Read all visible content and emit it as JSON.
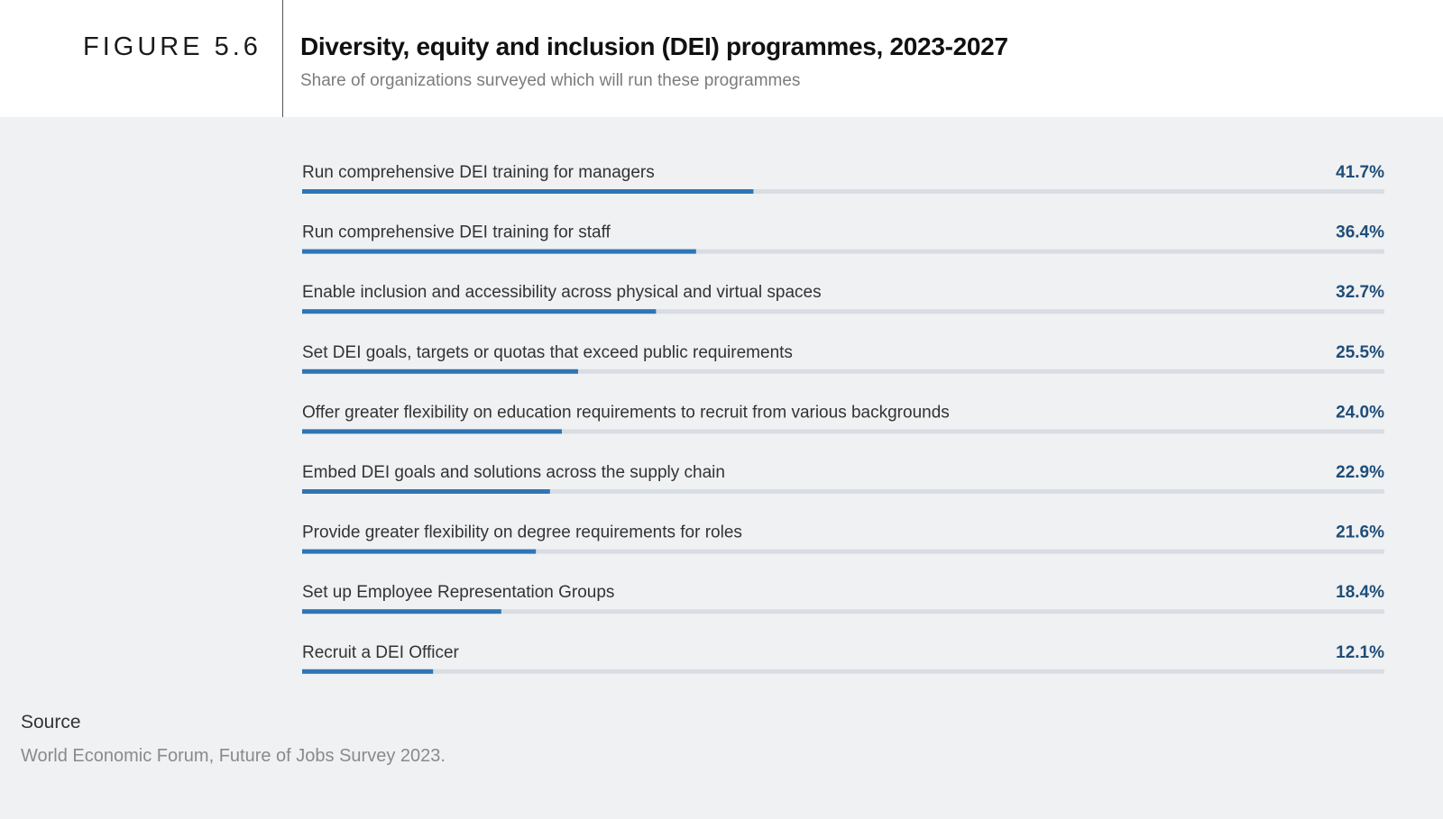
{
  "figure_label": "FIGURE 5.6",
  "source_label": "Source",
  "source_text": "World Economic Forum, Future of Jobs Survey 2023.",
  "colors": {
    "bar_fill": "#2e75b6",
    "bar_track": "#d9dde3",
    "value_text": "#1f4e79",
    "background": "#f0f1f3"
  },
  "chart_data": {
    "type": "bar",
    "orientation": "horizontal",
    "title": "Diversity, equity and inclusion (DEI) programmes, 2023-2027",
    "subtitle": "Share of organizations surveyed which will run these programmes",
    "xlim": [
      0,
      100
    ],
    "unit": "%",
    "categories": [
      "Run comprehensive DEI training for managers",
      "Run comprehensive DEI training for staff",
      "Enable inclusion and accessibility across physical and virtual spaces",
      "Set DEI goals, targets or quotas that exceed public requirements",
      "Offer greater flexibility on education requirements to recruit from various backgrounds",
      "Embed DEI goals and solutions across the supply chain",
      "Provide greater flexibility on degree requirements for roles",
      "Set up Employee Representation Groups",
      "Recruit a DEI Officer"
    ],
    "values": [
      41.7,
      36.4,
      32.7,
      25.5,
      24.0,
      22.9,
      21.6,
      18.4,
      12.1
    ],
    "value_labels": [
      "41.7%",
      "36.4%",
      "32.7%",
      "25.5%",
      "24.0%",
      "22.9%",
      "21.6%",
      "18.4%",
      "12.1%"
    ]
  }
}
